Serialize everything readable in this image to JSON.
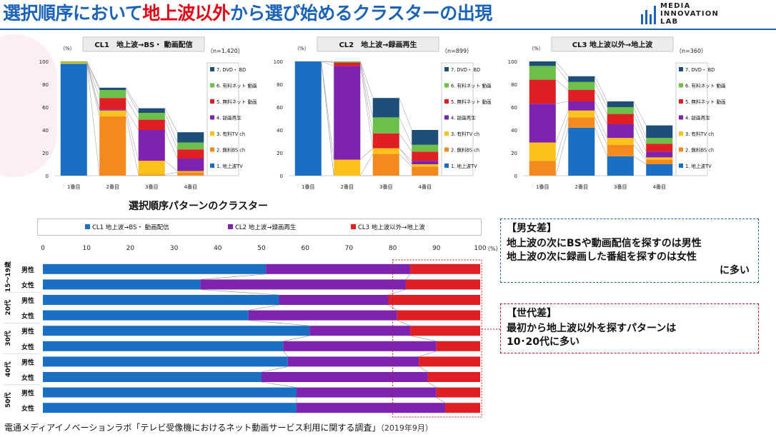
{
  "title": {
    "part1": "選択順序において",
    "highlight": "地上波以外",
    "part2": "から選び始めるクラスターの出現"
  },
  "logo": {
    "line1": "MEDIA",
    "line2": "INNOVATION",
    "line3": "LAB"
  },
  "section_label": "選択順序パターンのクラスター",
  "notes": {
    "gender": {
      "heading": "【男女差】",
      "line1": "地上波の次にBSや動画配信を探すのは男性",
      "line2": "地上波の次に録画した番組を探すのは女性",
      "line3": "に多い"
    },
    "age": {
      "heading": "【世代差】",
      "line1": "最初から地上波以外を探すパターンは",
      "line2": "10･20代に多い"
    }
  },
  "source": {
    "text": "電通メディアイノベーションラボ「テレビ受像機におけるネット動画サービス利用に関する調査」",
    "date": "（2019年9月）"
  },
  "chart_data": [
    {
      "type": "bar",
      "stacked": true,
      "title": "CL1　地上波→BS・ 動画配信",
      "n": "（n=1,420）",
      "yunit": "（%）",
      "ylim": [
        0,
        100
      ],
      "yticks": [
        0,
        20,
        40,
        60,
        80,
        100
      ],
      "categories": [
        "1番目",
        "2番目",
        "3番目",
        "4番目"
      ],
      "series": [
        {
          "name": "1. 地上波TV",
          "color": "#1a6fc4",
          "values": [
            98,
            0,
            0,
            0
          ]
        },
        {
          "name": "2. 無料BS ch",
          "color": "#f28a1e",
          "values": [
            0,
            52,
            1,
            3
          ]
        },
        {
          "name": "3. 有料TV ch",
          "color": "#fbc21a",
          "values": [
            1,
            5,
            12,
            1
          ]
        },
        {
          "name": "4. 録画再生",
          "color": "#7d23b0",
          "values": [
            0,
            1,
            27,
            11
          ]
        },
        {
          "name": "5. 無料ネット 動画",
          "color": "#e01f24",
          "values": [
            0,
            10,
            9,
            8
          ]
        },
        {
          "name": "6. 有料ネット 動画",
          "color": "#6cc04a",
          "values": [
            1,
            7,
            6,
            6
          ]
        },
        {
          "name": "7. DVD・ BD",
          "color": "#1f4e79",
          "values": [
            0,
            2,
            4,
            9
          ]
        }
      ],
      "legend": "right"
    },
    {
      "type": "bar",
      "stacked": true,
      "title": "CL2　地上波→録画再生",
      "n": "（n=899）",
      "yunit": "（%）",
      "ylim": [
        0,
        100
      ],
      "yticks": [
        0,
        20,
        40,
        60,
        80,
        100
      ],
      "categories": [
        "1番目",
        "2番目",
        "3番目",
        "4番目"
      ],
      "series": [
        {
          "name": "1. 地上波TV",
          "color": "#1a6fc4",
          "values": [
            100,
            0,
            0,
            0
          ]
        },
        {
          "name": "2. 無料BS ch",
          "color": "#f28a1e",
          "values": [
            0,
            0,
            19,
            8
          ]
        },
        {
          "name": "3. 有料TV ch",
          "color": "#fbc21a",
          "values": [
            0,
            14,
            5,
            2
          ]
        },
        {
          "name": "4. 録画再生",
          "color": "#7d23b0",
          "values": [
            0,
            82,
            0,
            3
          ]
        },
        {
          "name": "5. 無料ネット 動画",
          "color": "#e01f24",
          "values": [
            0,
            3,
            13,
            8
          ]
        },
        {
          "name": "6. 有料ネット 動画",
          "color": "#6cc04a",
          "values": [
            0,
            1,
            14,
            6
          ]
        },
        {
          "name": "7. DVD・ BD",
          "color": "#1f4e79",
          "values": [
            0,
            0,
            17,
            13
          ]
        }
      ],
      "legend": "right"
    },
    {
      "type": "bar",
      "stacked": true,
      "title": "CL3 地上波以外→地上波",
      "n": "（n=360）",
      "yunit": "（%）",
      "ylim": [
        0,
        100
      ],
      "yticks": [
        0,
        20,
        40,
        60,
        80,
        100
      ],
      "categories": [
        "1番目",
        "2番目",
        "3番目",
        "4番目"
      ],
      "series": [
        {
          "name": "1. 地上波TV",
          "color": "#1a6fc4",
          "values": [
            0,
            42,
            17,
            10
          ]
        },
        {
          "name": "2. 無料BS ch",
          "color": "#f28a1e",
          "values": [
            13,
            9,
            10,
            4
          ]
        },
        {
          "name": "3. 有料TV ch",
          "color": "#fbc21a",
          "values": [
            16,
            6,
            6,
            2
          ]
        },
        {
          "name": "4. 録画再生",
          "color": "#7d23b0",
          "values": [
            34,
            8,
            12,
            5
          ]
        },
        {
          "name": "5. 無料ネット 動画",
          "color": "#e01f24",
          "values": [
            21,
            10,
            9,
            7
          ]
        },
        {
          "name": "6. 有料ネット 動画",
          "color": "#6cc04a",
          "values": [
            12,
            7,
            6,
            5
          ]
        },
        {
          "name": "7. DVD・ BD",
          "color": "#1f4e79",
          "values": [
            4,
            5,
            5,
            11
          ]
        }
      ],
      "legend": "right"
    },
    {
      "type": "bar",
      "stacked": true,
      "orientation": "horizontal",
      "xunit": "（%）",
      "xlim": [
        0,
        100
      ],
      "xticks": [
        0,
        10,
        20,
        30,
        40,
        50,
        60,
        70,
        80,
        90,
        100
      ],
      "groups": [
        {
          "label": "15～19歳",
          "rows": [
            "男性",
            "女性"
          ]
        },
        {
          "label": "20代",
          "rows": [
            "男性",
            "女性"
          ]
        },
        {
          "label": "30代",
          "rows": [
            "男性",
            "女性"
          ]
        },
        {
          "label": "40代",
          "rows": [
            "男性",
            "女性"
          ]
        },
        {
          "label": "50代",
          "rows": [
            "男性",
            "女性"
          ]
        }
      ],
      "series": [
        {
          "name": "CL1 地上波→BS・ 動画配信",
          "color": "#1a6fc4",
          "values": [
            51,
            36,
            54,
            47,
            61,
            55,
            56,
            50,
            58,
            58
          ]
        },
        {
          "name": "CL2 地上波→録画再生",
          "color": "#7d23b0",
          "values": [
            33,
            47,
            25,
            34,
            23,
            35,
            30,
            38,
            32,
            34
          ]
        },
        {
          "name": "CL3 地上波以外→地上波",
          "color": "#e01f24",
          "values": [
            16,
            17,
            21,
            19,
            16,
            10,
            14,
            12,
            10,
            8
          ]
        }
      ],
      "legend": "top"
    }
  ]
}
